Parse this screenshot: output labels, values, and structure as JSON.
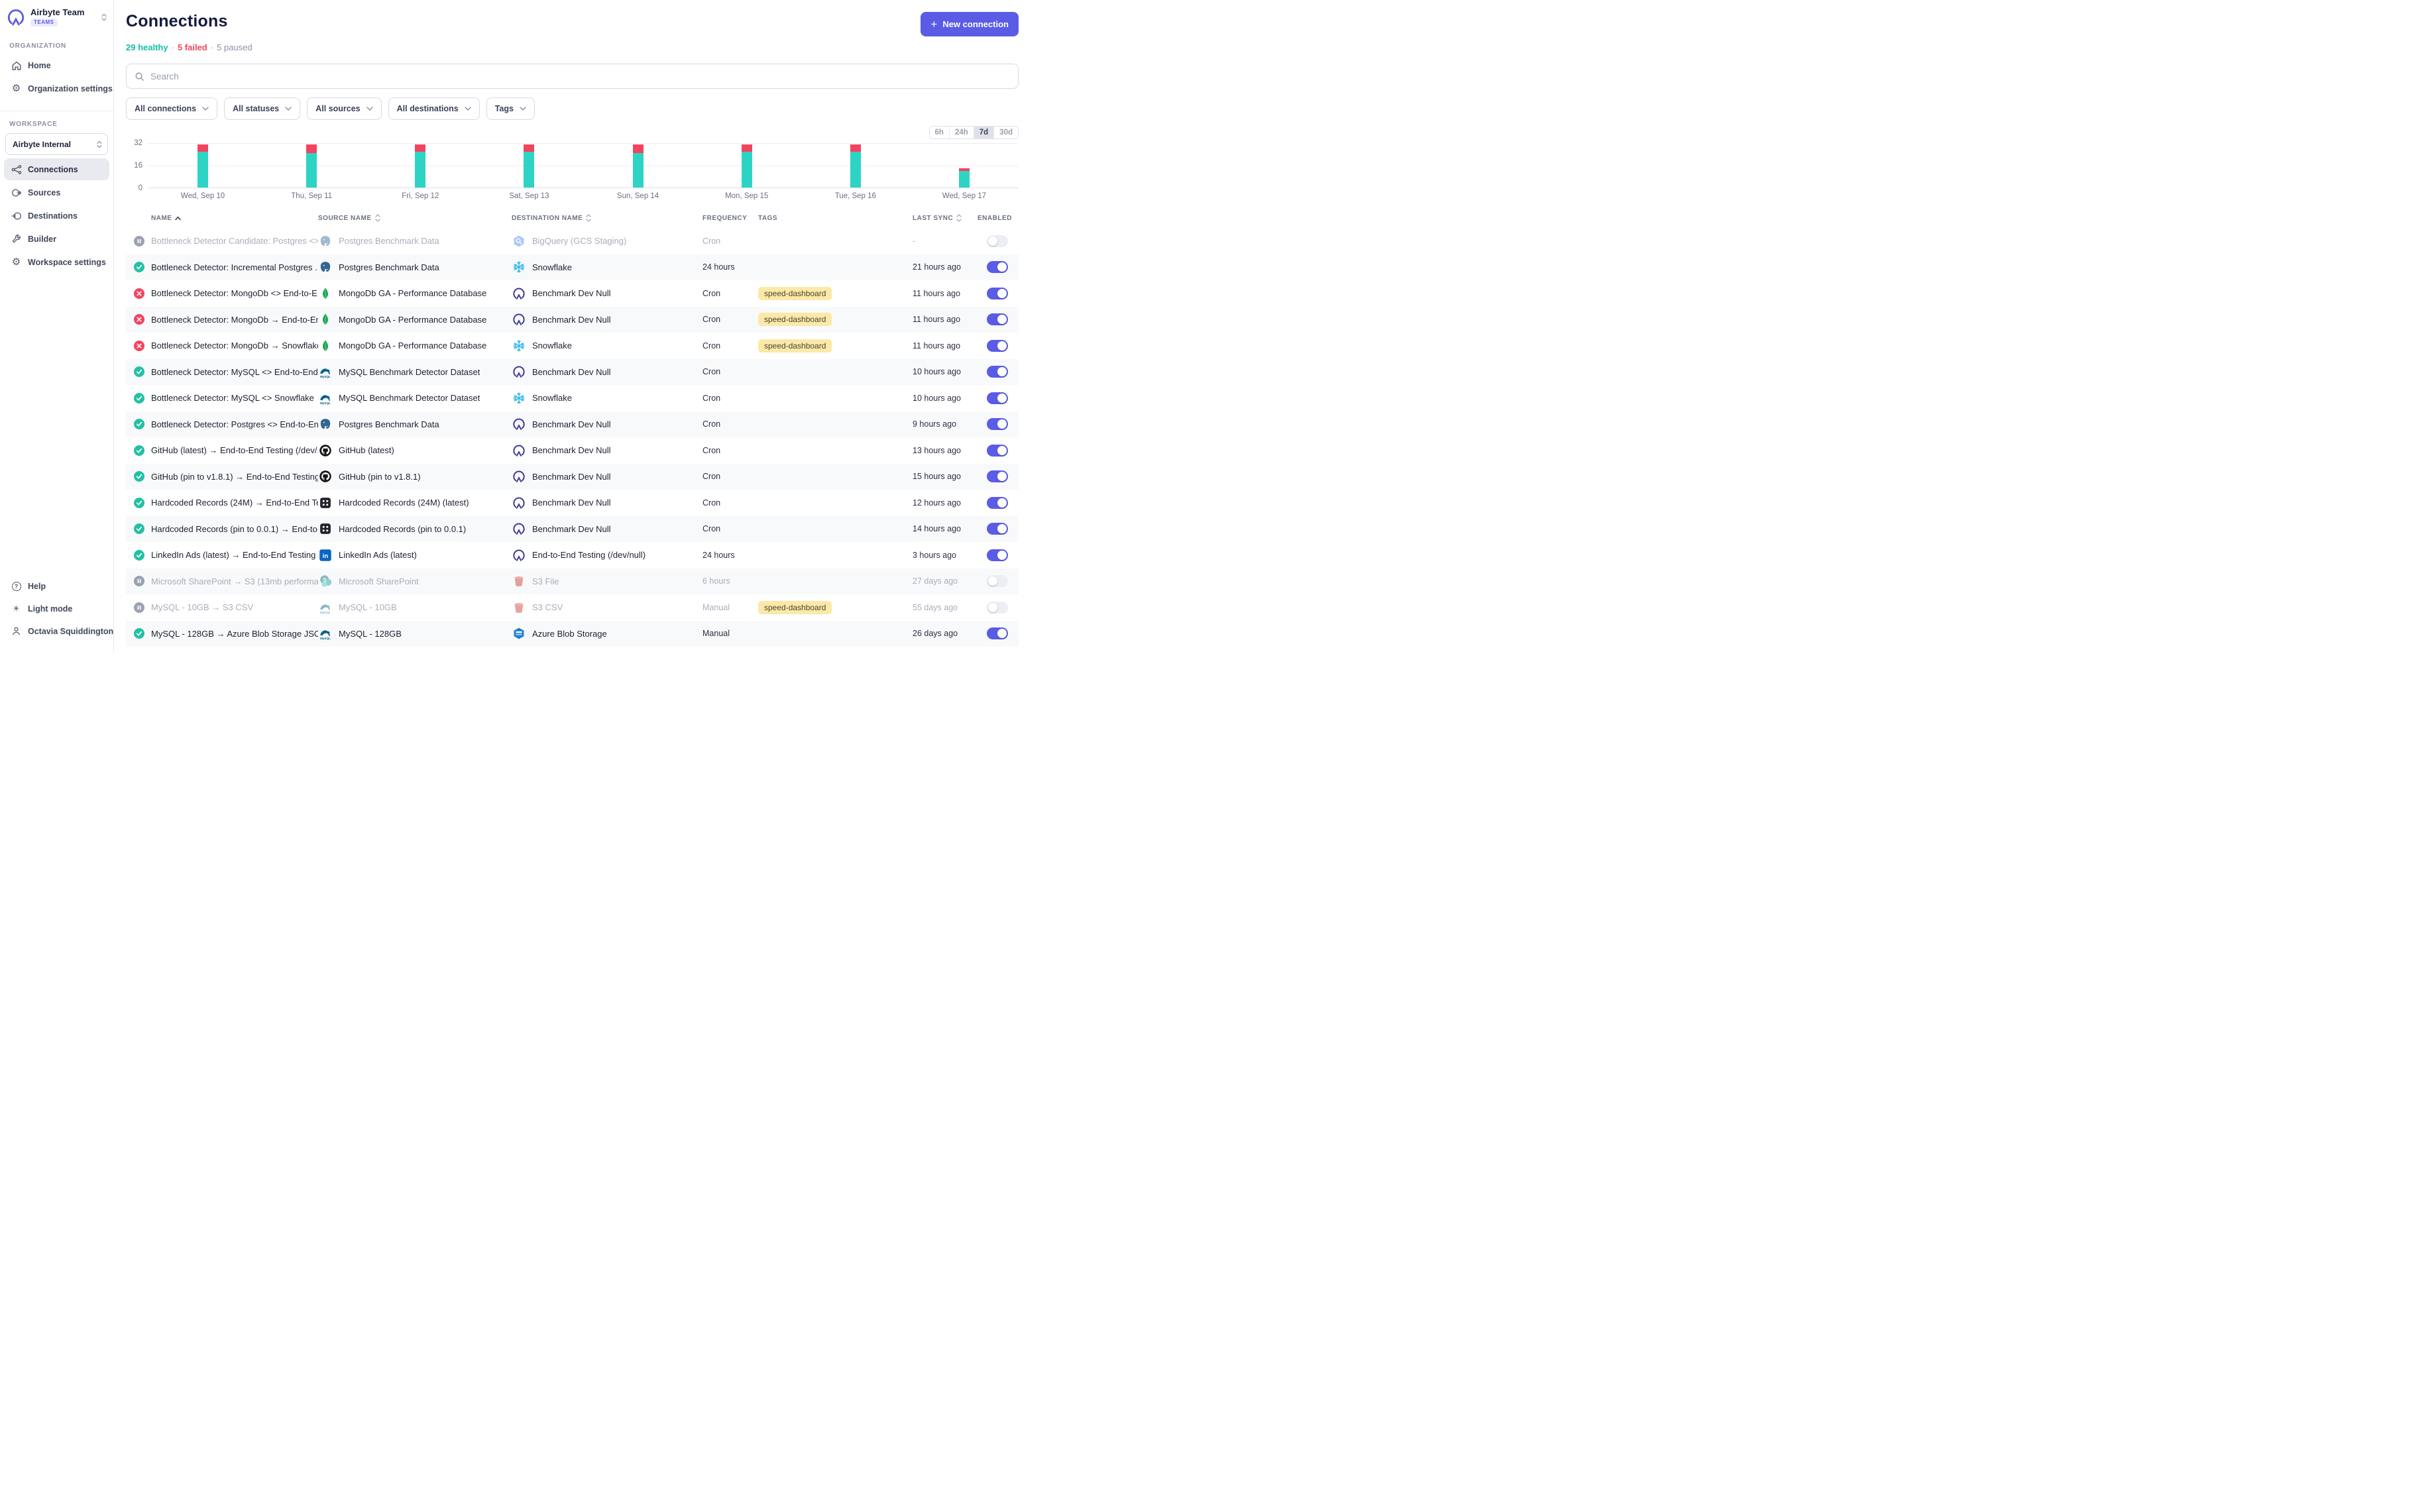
{
  "sidebar": {
    "org_name": "Airbyte Team",
    "org_badge": "TEAMS",
    "sections": {
      "organization": "ORGANIZATION",
      "workspace": "WORKSPACE"
    },
    "org_items": [
      {
        "label": "Home"
      },
      {
        "label": "Organization settings"
      }
    ],
    "workspace_name": "Airbyte Internal",
    "workspace_items": [
      {
        "label": "Connections",
        "active": true
      },
      {
        "label": "Sources"
      },
      {
        "label": "Destinations"
      },
      {
        "label": "Builder"
      },
      {
        "label": "Workspace settings"
      }
    ],
    "footer_items": [
      {
        "label": "Help"
      },
      {
        "label": "Light mode"
      },
      {
        "label": "Octavia Squiddington"
      }
    ]
  },
  "header": {
    "title": "Connections",
    "new_connection": "New connection",
    "summary": {
      "healthy": "29 healthy",
      "failed": "5 failed",
      "paused": "5 paused",
      "dot": "·"
    }
  },
  "toolbar": {
    "search_placeholder": "Search",
    "filters": [
      {
        "label": "All connections"
      },
      {
        "label": "All statuses"
      },
      {
        "label": "All sources"
      },
      {
        "label": "All destinations"
      },
      {
        "label": "Tags"
      }
    ],
    "time_ranges": [
      {
        "label": "6h"
      },
      {
        "label": "24h"
      },
      {
        "label": "7d",
        "active": true
      },
      {
        "label": "30d"
      }
    ]
  },
  "chart_data": {
    "type": "bar",
    "stacked": true,
    "categories": [
      "Wed, Sep 10",
      "Thu, Sep 11",
      "Fri, Sep 12",
      "Sat, Sep 13",
      "Sun, Sep 14",
      "Mon, Sep 15",
      "Tue, Sep 16",
      "Wed, Sep 17"
    ],
    "series": [
      {
        "name": "succeeded",
        "color": "#2dd4c4",
        "values": [
          26,
          25,
          26,
          26,
          25,
          26,
          26,
          12
        ]
      },
      {
        "name": "failed",
        "color": "#f4435f",
        "values": [
          5,
          6,
          5,
          5,
          6,
          5,
          5,
          2
        ]
      }
    ],
    "ylim": [
      0,
      32
    ],
    "yticks": [
      0,
      16,
      32
    ],
    "grid": true,
    "legend": "none"
  },
  "table": {
    "columns": [
      {
        "label": "NAME",
        "sort": "asc"
      },
      {
        "label": "SOURCE NAME",
        "sort": "both"
      },
      {
        "label": "DESTINATION NAME",
        "sort": "both"
      },
      {
        "label": "FREQUENCY",
        "sort": "none"
      },
      {
        "label": "TAGS",
        "sort": "none"
      },
      {
        "label": "LAST SYNC",
        "sort": "both"
      },
      {
        "label": "ENABLED",
        "sort": "none"
      }
    ],
    "rows": [
      {
        "state": "paused",
        "name": "Bottleneck Detector Candidate: Postgres <> ...",
        "source_icon": "postgres-icon",
        "source": "Postgres Benchmark Data",
        "dest_icon": "bigquery-icon",
        "destination": "BigQuery (GCS Staging)",
        "frequency": "Cron",
        "tags": [],
        "last_sync": "-",
        "enabled": false
      },
      {
        "state": "success",
        "name": "Bottleneck Detector: Incremental Postgres ...",
        "source_icon": "postgres-icon",
        "source": "Postgres Benchmark Data",
        "dest_icon": "snowflake-icon",
        "destination": "Snowflake",
        "frequency": "24 hours",
        "tags": [],
        "last_sync": "21 hours ago",
        "enabled": true
      },
      {
        "state": "failed",
        "name": "Bottleneck Detector: MongoDb <> End-to-E...",
        "source_icon": "mongodb-icon",
        "source": "MongoDb GA - Performance Database",
        "dest_icon": "airbyte-icon",
        "destination": "Benchmark Dev Null",
        "frequency": "Cron",
        "tags": [
          "speed-dashboard"
        ],
        "last_sync": "11 hours ago",
        "enabled": true
      },
      {
        "state": "failed",
        "name": "Bottleneck Detector: MongoDb → End-to-En...",
        "source_icon": "mongodb-icon",
        "source": "MongoDb GA - Performance Database",
        "dest_icon": "airbyte-icon",
        "destination": "Benchmark Dev Null",
        "frequency": "Cron",
        "tags": [
          "speed-dashboard"
        ],
        "last_sync": "11 hours ago",
        "enabled": true
      },
      {
        "state": "failed",
        "name": "Bottleneck Detector: MongoDb → Snowflake",
        "source_icon": "mongodb-icon",
        "source": "MongoDb GA - Performance Database",
        "dest_icon": "snowflake-icon",
        "destination": "Snowflake",
        "frequency": "Cron",
        "tags": [
          "speed-dashboard"
        ],
        "last_sync": "11 hours ago",
        "enabled": true
      },
      {
        "state": "success",
        "name": "Bottleneck Detector: MySQL <> End-to-End ...",
        "source_icon": "mysql-icon",
        "source": "MySQL Benchmark Detector Dataset",
        "dest_icon": "airbyte-icon",
        "destination": "Benchmark Dev Null",
        "frequency": "Cron",
        "tags": [],
        "last_sync": "10 hours ago",
        "enabled": true
      },
      {
        "state": "success",
        "name": "Bottleneck Detector: MySQL <> Snowflake",
        "source_icon": "mysql-icon",
        "source": "MySQL Benchmark Detector Dataset",
        "dest_icon": "snowflake-icon",
        "destination": "Snowflake",
        "frequency": "Cron",
        "tags": [],
        "last_sync": "10 hours ago",
        "enabled": true
      },
      {
        "state": "success",
        "name": "Bottleneck Detector: Postgres <> End-to-En...",
        "source_icon": "postgres-icon",
        "source": "Postgres Benchmark Data",
        "dest_icon": "airbyte-icon",
        "destination": "Benchmark Dev Null",
        "frequency": "Cron",
        "tags": [],
        "last_sync": "9 hours ago",
        "enabled": true
      },
      {
        "state": "success",
        "name": "GitHub (latest) → End-to-End Testing (/dev/...",
        "source_icon": "github-icon",
        "source": "GitHub (latest)",
        "dest_icon": "airbyte-icon",
        "destination": "Benchmark Dev Null",
        "frequency": "Cron",
        "tags": [],
        "last_sync": "13 hours ago",
        "enabled": true
      },
      {
        "state": "success",
        "name": "GitHub (pin to v1.8.1) → End-to-End Testing (...",
        "source_icon": "github-icon",
        "source": "GitHub (pin to v1.8.1)",
        "dest_icon": "airbyte-icon",
        "destination": "Benchmark Dev Null",
        "frequency": "Cron",
        "tags": [],
        "last_sync": "15 hours ago",
        "enabled": true
      },
      {
        "state": "success",
        "name": "Hardcoded Records (24M) → End-to-End Te...",
        "source_icon": "hardcoded-icon",
        "source": "Hardcoded Records (24M) (latest)",
        "dest_icon": "airbyte-icon",
        "destination": "Benchmark Dev Null",
        "frequency": "Cron",
        "tags": [],
        "last_sync": "12 hours ago",
        "enabled": true
      },
      {
        "state": "success",
        "name": "Hardcoded Records (pin to 0.0.1) → End-to-E...",
        "source_icon": "hardcoded-icon",
        "source": "Hardcoded Records (pin to 0.0.1)",
        "dest_icon": "airbyte-icon",
        "destination": "Benchmark Dev Null",
        "frequency": "Cron",
        "tags": [],
        "last_sync": "14 hours ago",
        "enabled": true
      },
      {
        "state": "success",
        "name": "LinkedIn Ads (latest) → End-to-End Testing (...",
        "source_icon": "linkedin-icon",
        "source": "LinkedIn Ads (latest)",
        "dest_icon": "airbyte-icon",
        "destination": "End-to-End Testing (/dev/null)",
        "frequency": "24 hours",
        "tags": [],
        "last_sync": "3 hours ago",
        "enabled": true
      },
      {
        "state": "paused",
        "name": "Microsoft SharePoint → S3 (13mb performan...",
        "source_icon": "sharepoint-icon",
        "source": "Microsoft SharePoint",
        "dest_icon": "s3-icon",
        "destination": "S3 File",
        "frequency": "6 hours",
        "tags": [],
        "last_sync": "27 days ago",
        "enabled": false
      },
      {
        "state": "paused",
        "name": "MySQL - 10GB → S3 CSV",
        "source_icon": "mysql-icon",
        "source": "MySQL - 10GB",
        "dest_icon": "s3-icon",
        "destination": "S3 CSV",
        "frequency": "Manual",
        "tags": [
          "speed-dashboard"
        ],
        "last_sync": "55 days ago",
        "enabled": false
      },
      {
        "state": "success",
        "name": "MySQL - 128GB → Azure Blob Storage JSOn ...",
        "source_icon": "mysql-icon",
        "source": "MySQL - 128GB",
        "dest_icon": "azure-icon",
        "destination": "Azure Blob Storage",
        "frequency": "Manual",
        "tags": [],
        "last_sync": "26 days ago",
        "enabled": true
      }
    ]
  },
  "colors": {
    "accent": "#5b5ce6",
    "healthy": "#13bfa6",
    "failed": "#f3445c",
    "paused_text": "#8d92a3",
    "bar_success": "#2dd4c4",
    "bar_failed": "#f4435f",
    "tag_bg": "#fbe9a7",
    "toggle_on": "#5b5ce6"
  }
}
